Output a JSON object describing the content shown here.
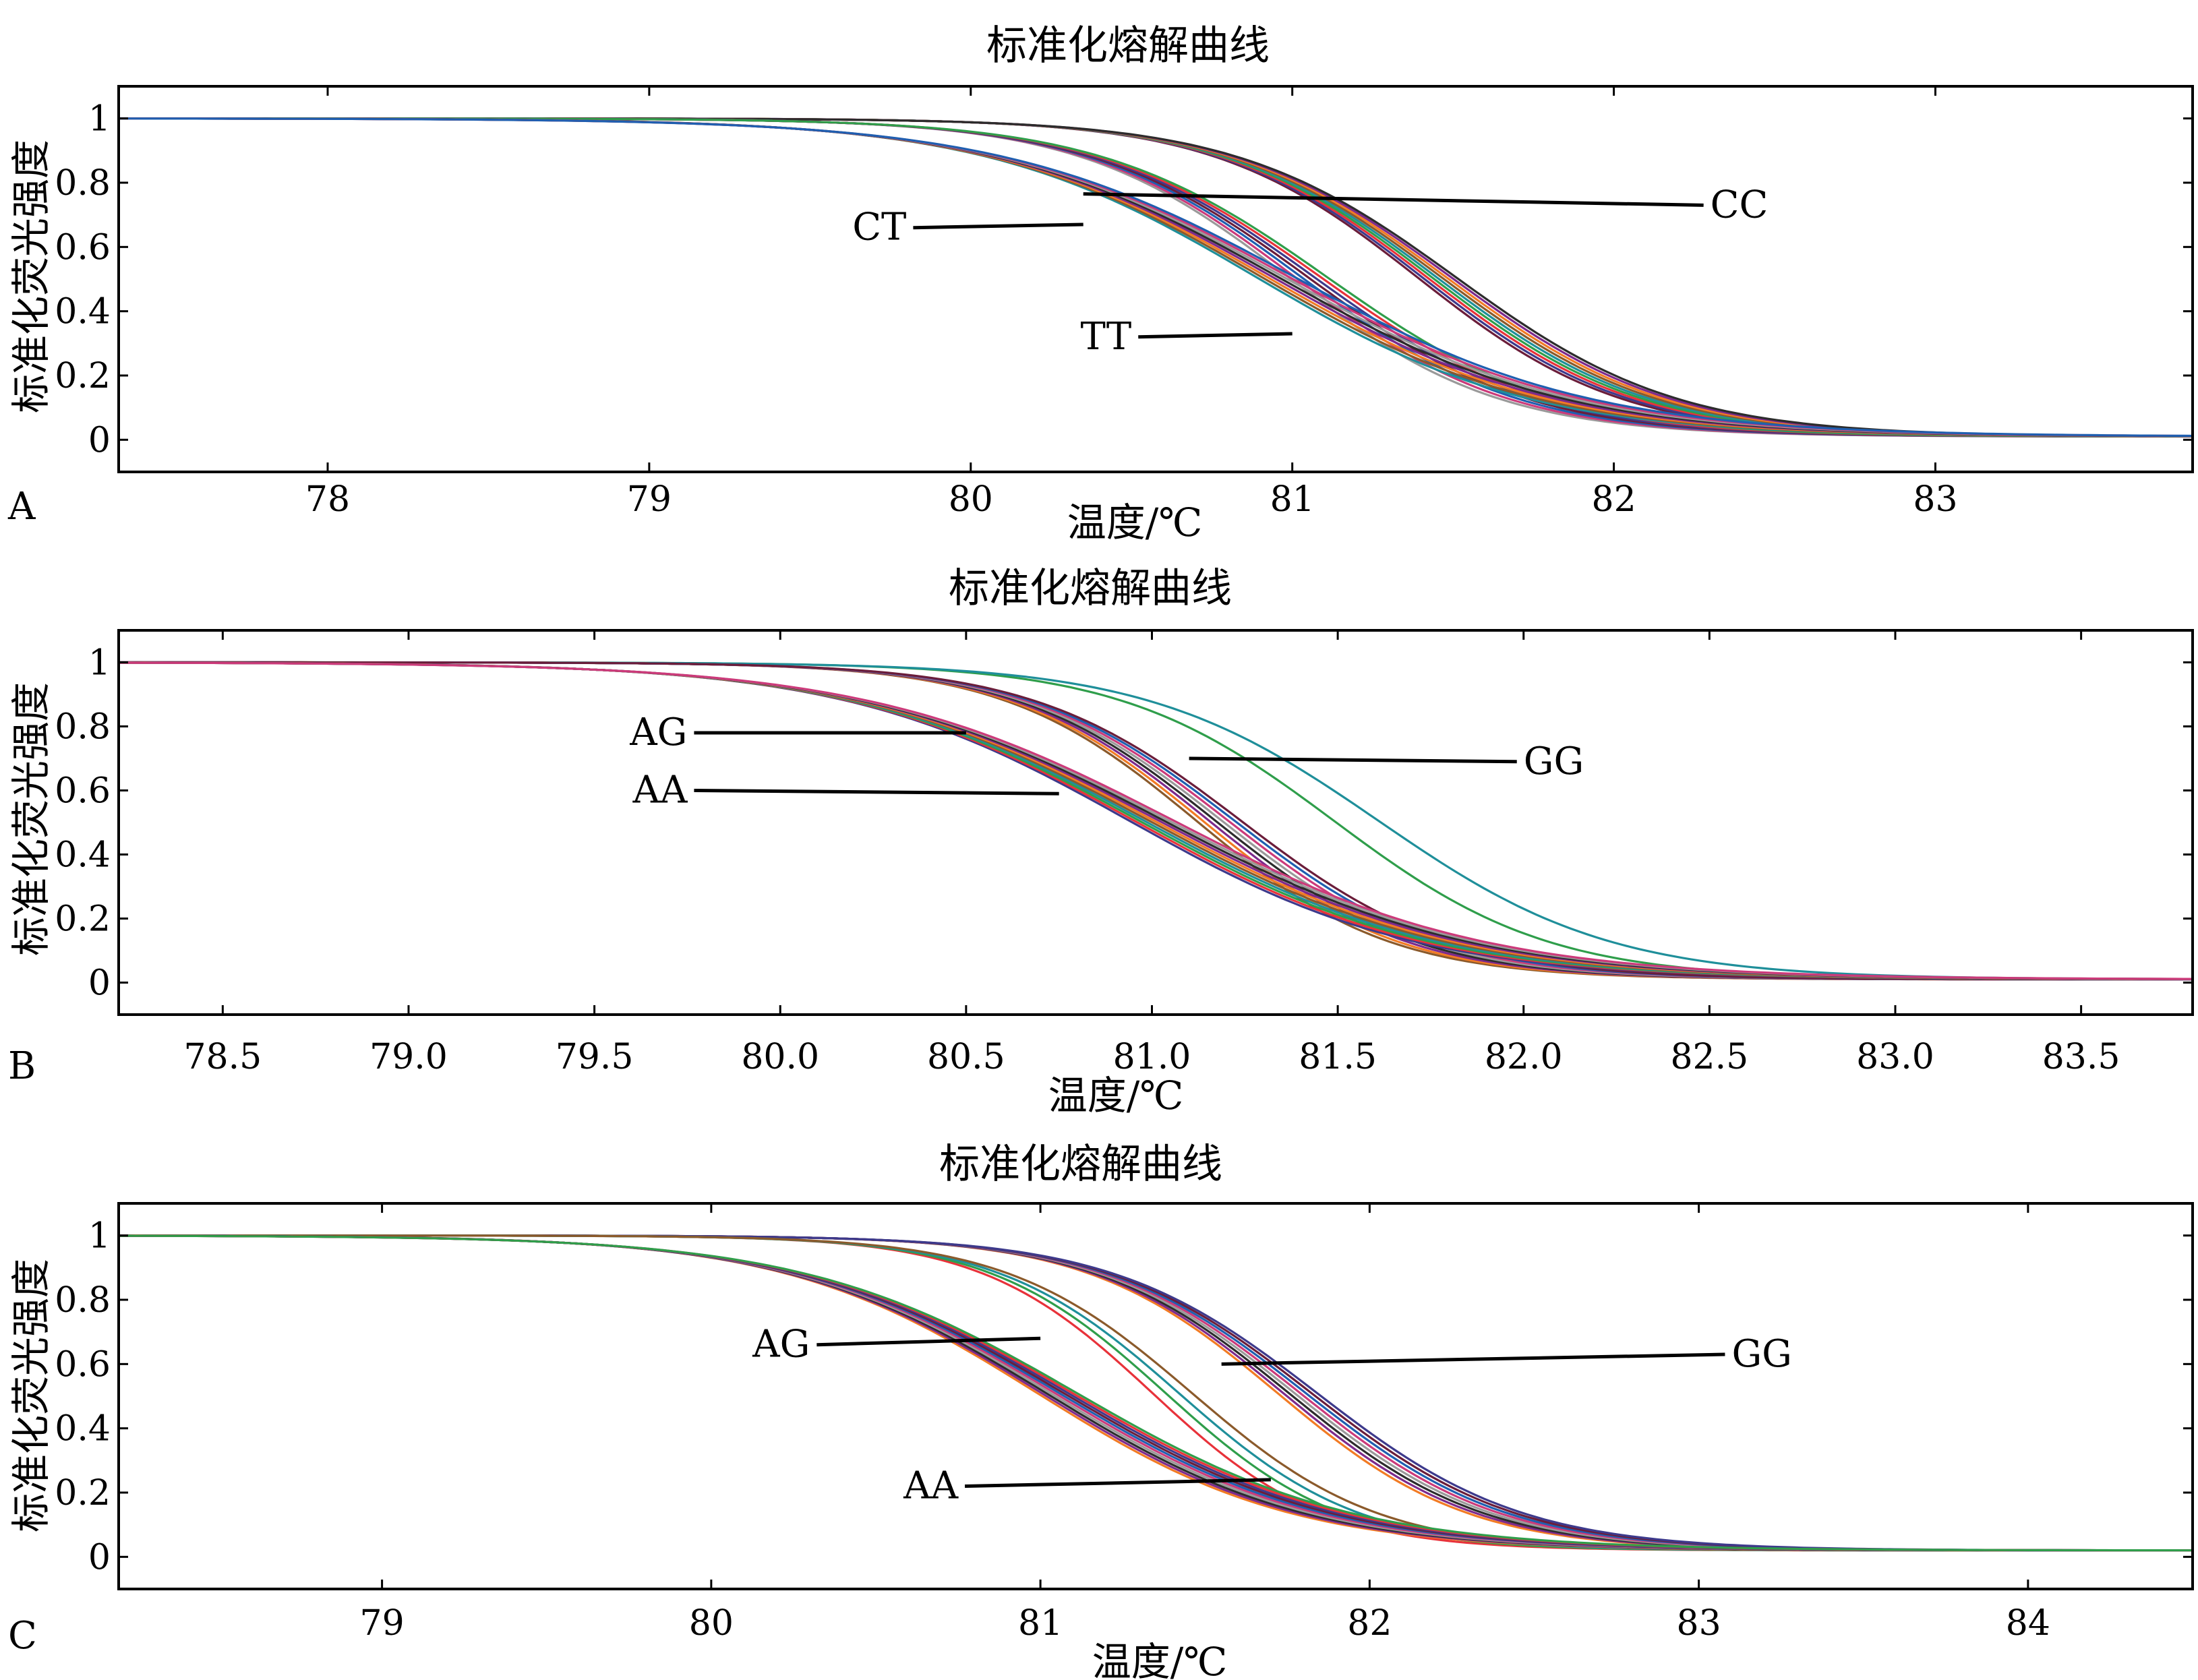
{
  "chart_data": [
    {
      "type": "line",
      "panel": "A",
      "title": "标准化熔解曲线",
      "xlabel": "温度/℃",
      "ylabel": "标准化荧光强度",
      "xlim": [
        77.35,
        83.8
      ],
      "ylim": [
        -0.1,
        1.1
      ],
      "xticks": [
        78,
        79,
        80,
        81,
        82,
        83
      ],
      "xtick_labels": [
        "78",
        "79",
        "80",
        "81",
        "82",
        "83"
      ],
      "yticks": [
        0,
        0.2,
        0.4,
        0.6,
        0.8,
        1
      ],
      "ytick_labels": [
        "0",
        "0.2",
        "0.4",
        "0.6",
        "0.8",
        "1"
      ],
      "grid": false,
      "plateau": 0.01,
      "groups": [
        {
          "label": "CC",
          "tm": 81.45,
          "width": 0.33,
          "variants": 9
        },
        {
          "label": "CT",
          "tm": 81.05,
          "width": 0.34,
          "variants": 7
        },
        {
          "label": "TT",
          "tm": 80.95,
          "width": 0.44,
          "variants": 8
        }
      ],
      "annotations": [
        {
          "text": "CC",
          "label_x": 82.3,
          "label_y": 0.73,
          "point_x": 80.35,
          "point_y": 0.765,
          "side": "right"
        },
        {
          "text": "CT",
          "label_x": 79.8,
          "label_y": 0.66,
          "point_x": 80.35,
          "point_y": 0.67,
          "side": "left"
        },
        {
          "text": "TT",
          "label_x": 80.5,
          "label_y": 0.32,
          "point_x": 81.0,
          "point_y": 0.33,
          "side": "left"
        }
      ]
    },
    {
      "type": "line",
      "panel": "B",
      "title": "标准化熔解曲线",
      "xlabel": "温度/℃",
      "ylabel": "标准化荧光强度",
      "xlim": [
        78.22,
        83.8
      ],
      "ylim": [
        -0.1,
        1.1
      ],
      "xticks": [
        78.5,
        79.0,
        79.5,
        80.0,
        80.5,
        81.0,
        81.5,
        82.0,
        82.5,
        83.0,
        83.5
      ],
      "xtick_labels": [
        "78.5",
        "79.0",
        "79.5",
        "80.0",
        "80.5",
        "81.0",
        "81.5",
        "82.0",
        "82.5",
        "83.0",
        "83.5"
      ],
      "yticks": [
        0,
        0.2,
        0.4,
        0.6,
        0.8,
        1
      ],
      "ytick_labels": [
        "0",
        "0.2",
        "0.4",
        "0.6",
        "0.8",
        "1"
      ],
      "grid": false,
      "plateau": 0.01,
      "groups": [
        {
          "label": "GG",
          "tm": 81.55,
          "width": 0.3,
          "variants": 2
        },
        {
          "label": "AG",
          "tm": 81.18,
          "width": 0.27,
          "variants": 8
        },
        {
          "label": "AA",
          "tm": 81.0,
          "width": 0.4,
          "variants": 10
        }
      ],
      "annotations": [
        {
          "text": "GG",
          "label_x": 82.0,
          "label_y": 0.69,
          "point_x": 81.1,
          "point_y": 0.7,
          "side": "right"
        },
        {
          "text": "AG",
          "label_x": 79.75,
          "label_y": 0.78,
          "point_x": 80.5,
          "point_y": 0.78,
          "side": "left"
        },
        {
          "text": "AA",
          "label_x": 79.75,
          "label_y": 0.6,
          "point_x": 80.75,
          "point_y": 0.59,
          "side": "left"
        }
      ]
    },
    {
      "type": "line",
      "panel": "C",
      "title": "标准化熔解曲线",
      "xlabel": "温度/℃",
      "ylabel": "标准化荧光强度",
      "xlim": [
        78.2,
        84.5
      ],
      "ylim": [
        -0.1,
        1.1
      ],
      "xticks": [
        79,
        80,
        81,
        82,
        83,
        84
      ],
      "xtick_labels": [
        "79",
        "80",
        "81",
        "82",
        "83",
        "84"
      ],
      "yticks": [
        0,
        0.2,
        0.4,
        0.6,
        0.8,
        1
      ],
      "ytick_labels": [
        "0",
        "0.2",
        "0.4",
        "0.6",
        "0.8",
        "1"
      ],
      "grid": false,
      "plateau": 0.02,
      "groups": [
        {
          "label": "GG",
          "tm": 81.78,
          "width": 0.3,
          "variants": 8
        },
        {
          "label": "AG",
          "tm": 81.4,
          "width": 0.27,
          "variants": 4
        },
        {
          "label": "AA",
          "tm": 81.05,
          "width": 0.4,
          "variants": 10
        }
      ],
      "annotations": [
        {
          "text": "GG",
          "label_x": 83.1,
          "label_y": 0.63,
          "point_x": 81.55,
          "point_y": 0.6,
          "side": "right"
        },
        {
          "text": "AG",
          "label_x": 80.3,
          "label_y": 0.66,
          "point_x": 81.0,
          "point_y": 0.68,
          "side": "left"
        },
        {
          "text": "AA",
          "label_x": 80.75,
          "label_y": 0.22,
          "point_x": 81.7,
          "point_y": 0.24,
          "side": "left"
        }
      ]
    }
  ],
  "panel_letters": [
    "A",
    "B",
    "C"
  ],
  "colors": {
    "series": [
      "#6b1d3a",
      "#3d3a8c",
      "#e8323a",
      "#2f9e4b",
      "#1f8f9a",
      "#8b5a2b",
      "#f27b24",
      "#7d2a8c",
      "#2c2c2c",
      "#9a9a9a",
      "#cc3a7a",
      "#1f5fb0"
    ]
  }
}
